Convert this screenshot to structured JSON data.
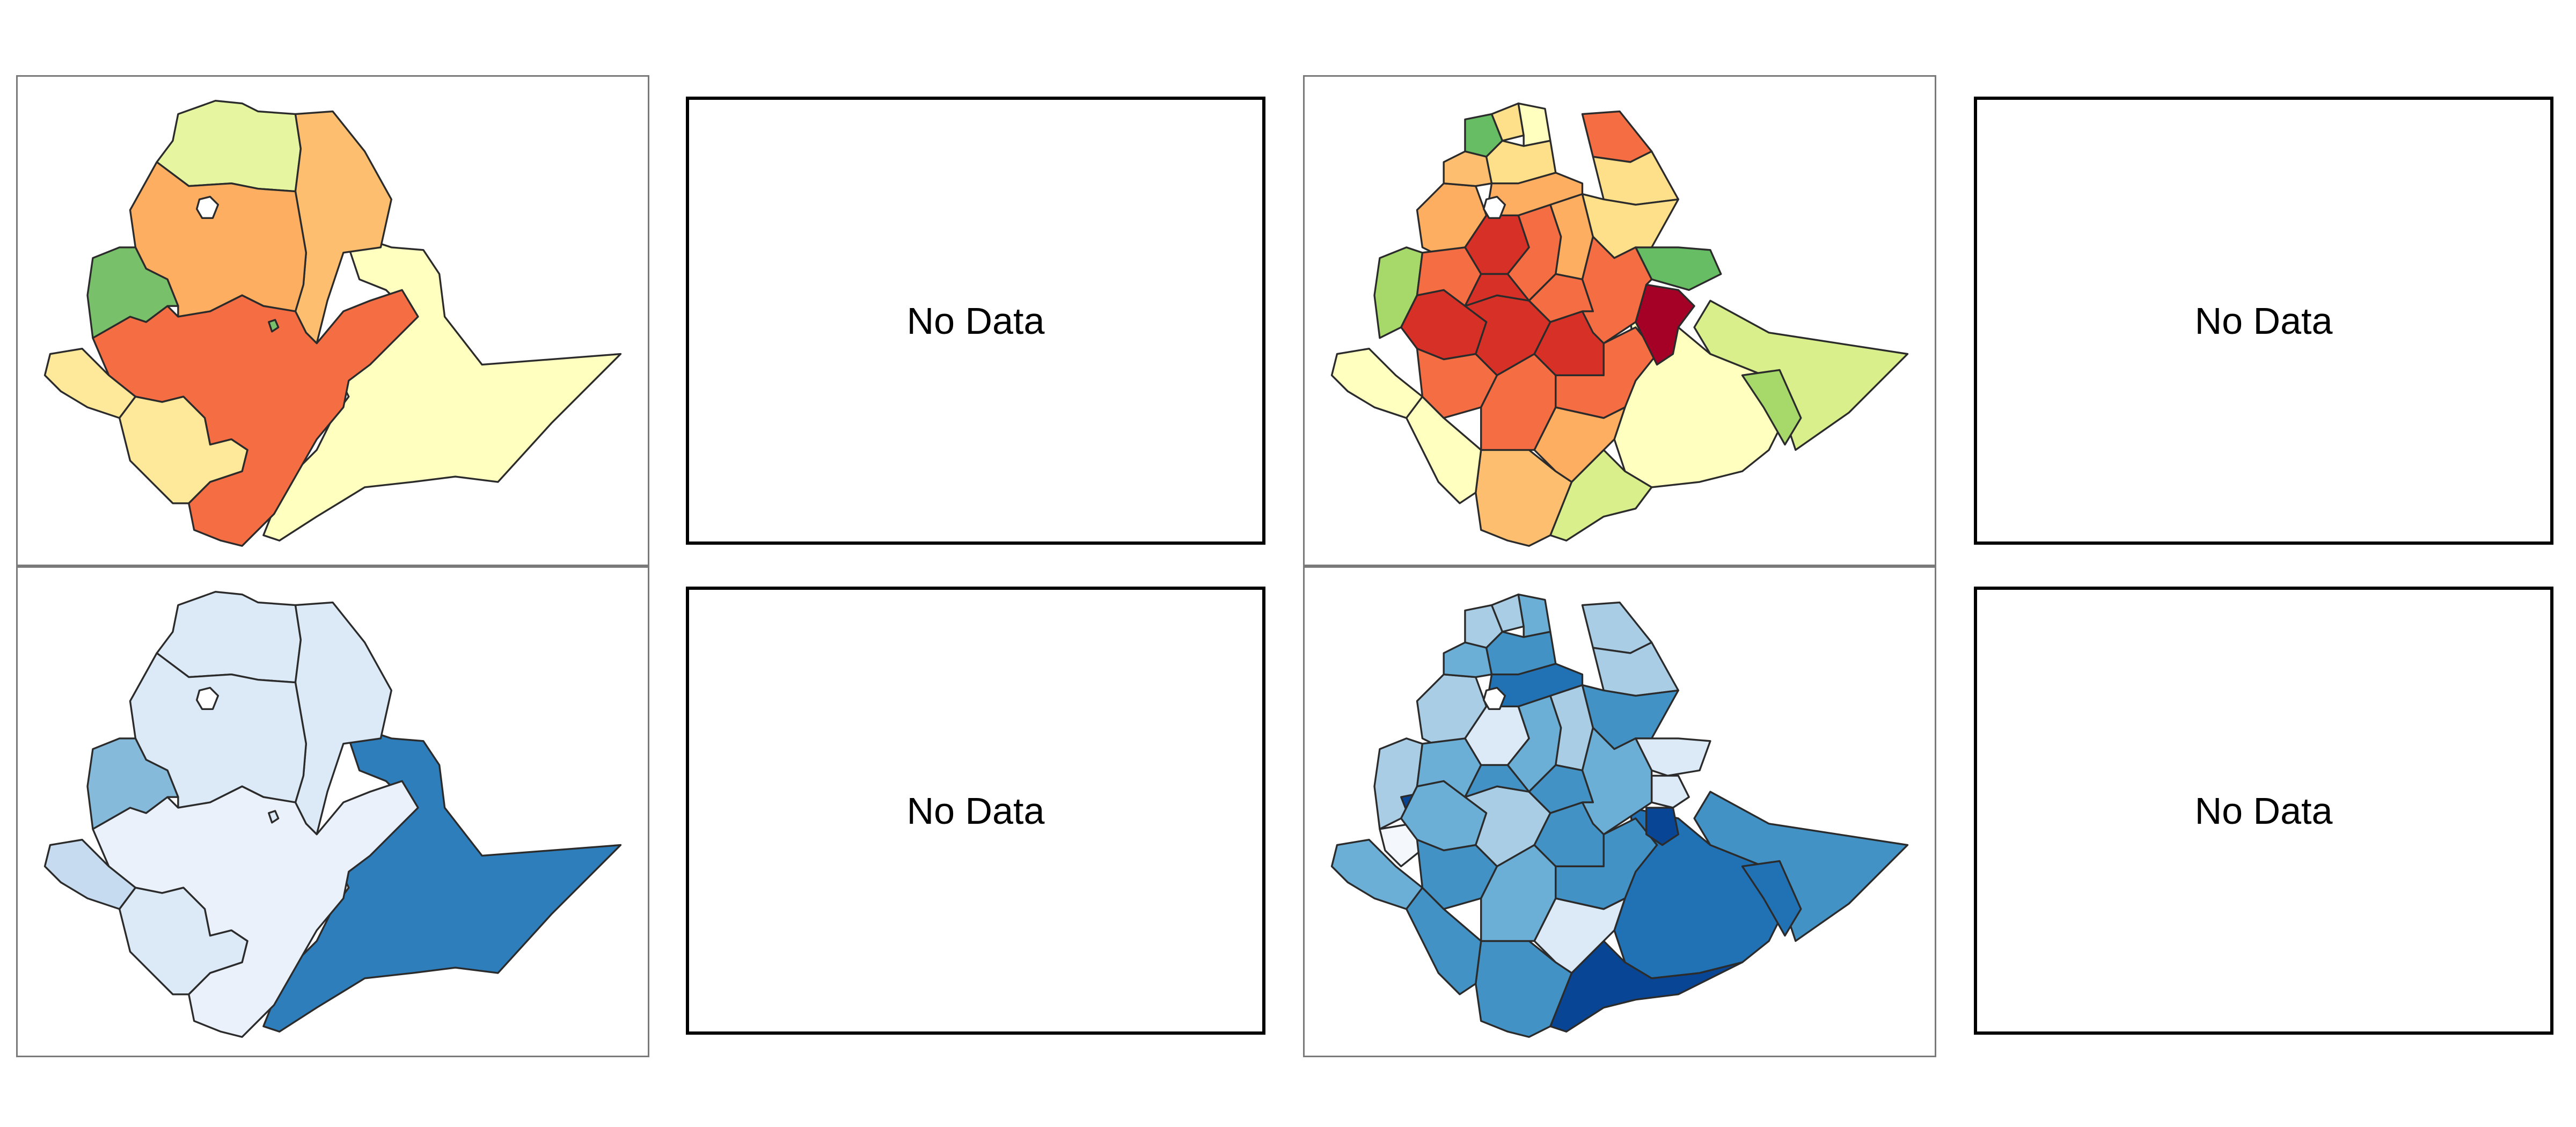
{
  "figure": {
    "panels": [
      {
        "id": "top-left",
        "kind": "map",
        "region_level": "region",
        "palette": "RdYlGn",
        "region_colors": [
          "#ffffbf",
          "#e6f5a0",
          "#fdbf6f",
          "#fdae61",
          "#f46d43",
          "#ffe599",
          "#78c06a",
          "#fee89a"
        ]
      },
      {
        "id": "top-center-left",
        "kind": "no-data",
        "label": "No Data"
      },
      {
        "id": "top-right",
        "kind": "map",
        "region_level": "zone",
        "palette": "RdYlGn",
        "region_colors": [
          "#ffffbf",
          "#d9ef8b",
          "#a6d96a",
          "#66bd63",
          "#fee08b",
          "#fdae61",
          "#f46d43",
          "#d73027",
          "#a50026"
        ]
      },
      {
        "id": "top-far-right",
        "kind": "no-data",
        "label": "No Data"
      },
      {
        "id": "bottom-left",
        "kind": "map",
        "region_level": "region",
        "palette": "Blues",
        "region_colors": [
          "#eaf1fa",
          "#dce9f6",
          "#c6dbef",
          "#86bada",
          "#2e7ebc"
        ]
      },
      {
        "id": "bottom-center-left",
        "kind": "no-data",
        "label": "No Data"
      },
      {
        "id": "bottom-right",
        "kind": "map",
        "region_level": "zone",
        "palette": "Blues",
        "region_colors": [
          "#f4f8fd",
          "#dce9f6",
          "#a9cde5",
          "#6baed6",
          "#4292c6",
          "#2171b5",
          "#084594"
        ]
      },
      {
        "id": "bottom-far-right",
        "kind": "no-data",
        "label": "No Data"
      }
    ]
  }
}
